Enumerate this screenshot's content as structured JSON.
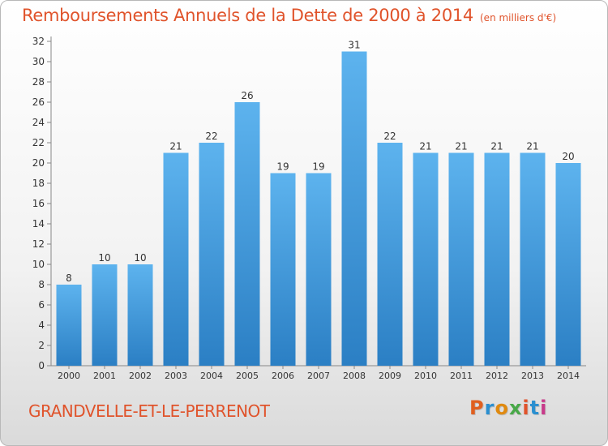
{
  "chart_data": {
    "type": "bar",
    "title": "Remboursements Annuels de la Dette de 2000 à 2014",
    "unit": "(en milliers d'€)",
    "categories": [
      "2000",
      "2001",
      "2002",
      "2003",
      "2004",
      "2005",
      "2006",
      "2007",
      "2008",
      "2009",
      "2010",
      "2011",
      "2012",
      "2013",
      "2014"
    ],
    "values": [
      8,
      10,
      10,
      21,
      22,
      26,
      19,
      19,
      31,
      22,
      21,
      21,
      21,
      21,
      20
    ],
    "ylim": [
      0,
      32
    ],
    "yticks": [
      0,
      2,
      4,
      6,
      8,
      10,
      12,
      14,
      16,
      18,
      20,
      22,
      24,
      26,
      28,
      30,
      32
    ],
    "grid": false,
    "bar_color": "#3d9ee0"
  },
  "footer": {
    "commune": "GRANDVELLE-ET-LE-PERRENOT",
    "logo_text": "Proxiti",
    "logo_colors": [
      "#e06020",
      "#2a8fd0",
      "#e08a10",
      "#48a848",
      "#e0532b",
      "#2a8fd0",
      "#c83a8a"
    ]
  }
}
